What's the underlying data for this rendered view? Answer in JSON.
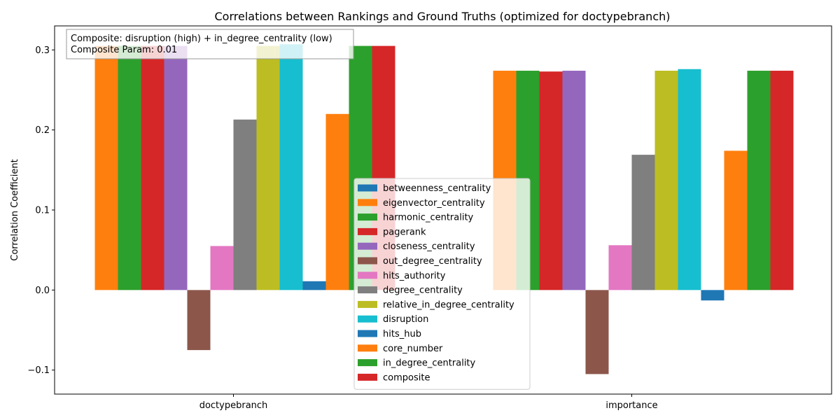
{
  "chart_data": {
    "type": "bar",
    "title": "Correlations between Rankings and Ground Truths (optimized for doctypebranch)",
    "xlabel": "",
    "ylabel": "Correlation Coefficient",
    "ylim": [
      -0.13,
      0.33
    ],
    "yticks": [
      -0.1,
      0.0,
      0.1,
      0.2,
      0.3
    ],
    "ytick_labels": [
      "−0.1",
      "0.0",
      "0.1",
      "0.2",
      "0.3"
    ],
    "categories": [
      "doctypebranch",
      "importance"
    ],
    "grid": false,
    "legend_position": "lower center",
    "annotation": [
      "Composite: disruption (high) + in_degree_centrality (low)",
      "Composite Param: 0.01"
    ],
    "series": [
      {
        "name": "betweenness_centrality",
        "color": "#1f77b4",
        "values": [
          0.0,
          0.0
        ]
      },
      {
        "name": "eigenvector_centrality",
        "color": "#ff7f0e",
        "values": [
          0.305,
          0.274
        ]
      },
      {
        "name": "harmonic_centrality",
        "color": "#2ca02c",
        "values": [
          0.305,
          0.274
        ]
      },
      {
        "name": "pagerank",
        "color": "#d62728",
        "values": [
          0.305,
          0.273
        ]
      },
      {
        "name": "closeness_centrality",
        "color": "#9467bd",
        "values": [
          0.305,
          0.274
        ]
      },
      {
        "name": "out_degree_centrality",
        "color": "#8c564b",
        "values": [
          -0.075,
          -0.105
        ]
      },
      {
        "name": "hits_authority",
        "color": "#e377c2",
        "values": [
          0.055,
          0.056
        ]
      },
      {
        "name": "degree_centrality",
        "color": "#7f7f7f",
        "values": [
          0.213,
          0.169
        ]
      },
      {
        "name": "relative_in_degree_centrality",
        "color": "#bcbd22",
        "values": [
          0.305,
          0.274
        ]
      },
      {
        "name": "disruption",
        "color": "#17becf",
        "values": [
          0.307,
          0.276
        ]
      },
      {
        "name": "hits_hub",
        "color": "#1f77b4",
        "values": [
          0.011,
          -0.013
        ]
      },
      {
        "name": "core_number",
        "color": "#ff7f0e",
        "values": [
          0.22,
          0.174
        ]
      },
      {
        "name": "in_degree_centrality",
        "color": "#2ca02c",
        "values": [
          0.305,
          0.274
        ]
      },
      {
        "name": "composite",
        "color": "#d62728",
        "values": [
          0.305,
          0.274
        ]
      }
    ]
  }
}
